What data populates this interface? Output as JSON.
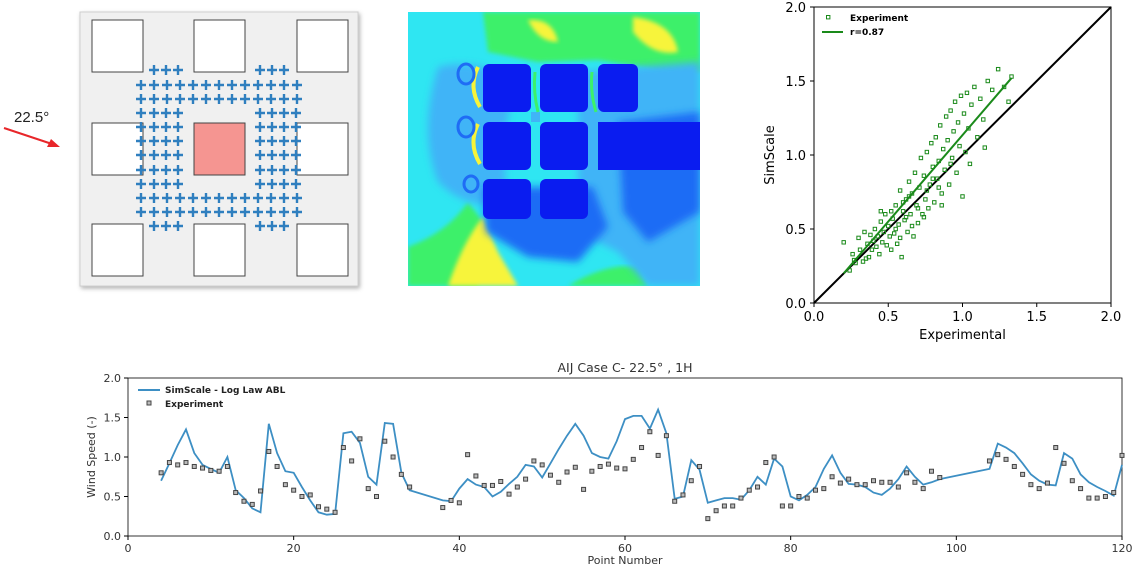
{
  "layout_panel": {
    "wind_angle_label": "22.5°",
    "arrow_color": "#e8262a",
    "target_building_color": "#f59591",
    "probe_color": "#2f7fbf"
  },
  "contour_panel": {
    "palette": [
      "#0a1cf0",
      "#1f6cf5",
      "#40b4f7",
      "#2af0f5",
      "#3cf06a",
      "#f7f43a"
    ]
  },
  "chart_data": [
    {
      "type": "scatter",
      "xlabel": "Experimental",
      "ylabel": "SimScale",
      "xlim": [
        0.0,
        2.0
      ],
      "ylim": [
        0.0,
        2.0
      ],
      "xticks": [
        "0.0",
        "0.5",
        "1.0",
        "1.5",
        "2.0"
      ],
      "yticks": [
        "0.0",
        "0.5",
        "1.0",
        "1.5",
        "2.0"
      ],
      "legend": [
        "Experiment",
        "r=0.87"
      ],
      "legend_position": "top-left",
      "grid": false,
      "colors": {
        "points": "#1a8a1a",
        "fit": "#1a8a1a",
        "identity": "#000000"
      },
      "identity_line": {
        "x": [
          0.0,
          2.0
        ],
        "y": [
          0.0,
          2.0
        ]
      },
      "fit_line": {
        "x": [
          0.2,
          1.33
        ],
        "y": [
          0.2,
          1.52
        ]
      },
      "points": [
        [
          0.2,
          0.41
        ],
        [
          0.24,
          0.22
        ],
        [
          0.26,
          0.33
        ],
        [
          0.28,
          0.27
        ],
        [
          0.3,
          0.44
        ],
        [
          0.31,
          0.36
        ],
        [
          0.33,
          0.28
        ],
        [
          0.34,
          0.48
        ],
        [
          0.36,
          0.4
        ],
        [
          0.37,
          0.31
        ],
        [
          0.38,
          0.46
        ],
        [
          0.39,
          0.36
        ],
        [
          0.4,
          0.42
        ],
        [
          0.41,
          0.5
        ],
        [
          0.42,
          0.38
        ],
        [
          0.43,
          0.45
        ],
        [
          0.44,
          0.33
        ],
        [
          0.45,
          0.55
        ],
        [
          0.46,
          0.41
        ],
        [
          0.47,
          0.48
        ],
        [
          0.48,
          0.6
        ],
        [
          0.49,
          0.39
        ],
        [
          0.5,
          0.52
        ],
        [
          0.51,
          0.45
        ],
        [
          0.52,
          0.62
        ],
        [
          0.53,
          0.57
        ],
        [
          0.54,
          0.47
        ],
        [
          0.55,
          0.66
        ],
        [
          0.56,
          0.4
        ],
        [
          0.57,
          0.53
        ],
        [
          0.58,
          0.76
        ],
        [
          0.59,
          0.31
        ],
        [
          0.6,
          0.62
        ],
        [
          0.61,
          0.56
        ],
        [
          0.62,
          0.7
        ],
        [
          0.63,
          0.48
        ],
        [
          0.64,
          0.82
        ],
        [
          0.65,
          0.6
        ],
        [
          0.66,
          0.74
        ],
        [
          0.67,
          0.45
        ],
        [
          0.68,
          0.88
        ],
        [
          0.69,
          0.66
        ],
        [
          0.7,
          0.54
        ],
        [
          0.71,
          0.78
        ],
        [
          0.72,
          0.98
        ],
        [
          0.73,
          0.6
        ],
        [
          0.74,
          0.86
        ],
        [
          0.75,
          0.7
        ],
        [
          0.76,
          1.02
        ],
        [
          0.77,
          0.64
        ],
        [
          0.78,
          0.8
        ],
        [
          0.79,
          1.08
        ],
        [
          0.8,
          0.92
        ],
        [
          0.81,
          0.68
        ],
        [
          0.82,
          1.12
        ],
        [
          0.83,
          0.84
        ],
        [
          0.84,
          0.96
        ],
        [
          0.85,
          1.2
        ],
        [
          0.86,
          0.74
        ],
        [
          0.87,
          1.04
        ],
        [
          0.88,
          0.9
        ],
        [
          0.89,
          1.26
        ],
        [
          0.9,
          1.1
        ],
        [
          0.91,
          0.8
        ],
        [
          0.92,
          1.3
        ],
        [
          0.93,
          0.98
        ],
        [
          0.94,
          1.16
        ],
        [
          0.95,
          1.36
        ],
        [
          0.96,
          0.88
        ],
        [
          0.97,
          1.22
        ],
        [
          0.98,
          1.06
        ],
        [
          0.99,
          1.4
        ],
        [
          1.0,
          0.72
        ],
        [
          1.01,
          1.28
        ],
        [
          1.02,
          1.02
        ],
        [
          1.03,
          1.42
        ],
        [
          1.04,
          1.18
        ],
        [
          1.05,
          0.94
        ],
        [
          1.06,
          1.34
        ],
        [
          1.08,
          1.46
        ],
        [
          1.1,
          1.12
        ],
        [
          1.12,
          1.38
        ],
        [
          1.14,
          1.24
        ],
        [
          1.17,
          1.5
        ],
        [
          1.2,
          1.44
        ],
        [
          1.24,
          1.58
        ],
        [
          1.28,
          1.46
        ],
        [
          1.31,
          1.36
        ],
        [
          1.33,
          1.53
        ],
        [
          0.35,
          0.3
        ],
        [
          0.45,
          0.62
        ],
        [
          0.52,
          0.36
        ],
        [
          0.58,
          0.44
        ],
        [
          0.62,
          0.58
        ],
        [
          0.66,
          0.52
        ],
        [
          0.7,
          0.64
        ],
        [
          0.74,
          0.58
        ],
        [
          0.8,
          0.84
        ],
        [
          0.86,
          0.66
        ],
        [
          0.92,
          0.94
        ],
        [
          1.15,
          1.05
        ],
        [
          0.27,
          0.29
        ],
        [
          0.55,
          0.5
        ],
        [
          0.6,
          0.68
        ],
        [
          0.64,
          0.72
        ],
        [
          0.76,
          0.76
        ],
        [
          0.84,
          0.78
        ]
      ]
    },
    {
      "type": "line",
      "title": "AIJ Case C- 22.5° , 1H",
      "xlabel": "Point Number",
      "ylabel": "Wind Speed (-)",
      "xlim": [
        0,
        120
      ],
      "ylim": [
        0.0,
        2.0
      ],
      "xticks": [
        "0",
        "20",
        "40",
        "60",
        "80",
        "100",
        "120"
      ],
      "yticks": [
        "0.0",
        "0.5",
        "1.0",
        "1.5",
        "2.0"
      ],
      "legend": [
        "SimScale - Log Law ABL",
        "Experiment"
      ],
      "legend_position": "top-left",
      "grid": false,
      "colors": {
        "line": "#3d8fc4",
        "markers": "#444444"
      },
      "series_line": {
        "name": "SimScale - Log Law ABL",
        "x": [
          4,
          5,
          6,
          7,
          8,
          9,
          10,
          11,
          12,
          13,
          14,
          15,
          16,
          17,
          18,
          19,
          20,
          21,
          22,
          23,
          24,
          25,
          26,
          27,
          28,
          29,
          30,
          31,
          32,
          33,
          34,
          38,
          39,
          40,
          41,
          42,
          43,
          44,
          45,
          46,
          47,
          48,
          49,
          50,
          51,
          52,
          53,
          54,
          55,
          56,
          57,
          58,
          59,
          60,
          61,
          62,
          63,
          64,
          65,
          66,
          67,
          68,
          69,
          70,
          71,
          72,
          73,
          74,
          75,
          76,
          77,
          78,
          79,
          80,
          81,
          82,
          83,
          84,
          85,
          86,
          87,
          88,
          89,
          90,
          91,
          92,
          93,
          94,
          95,
          96,
          97,
          98,
          104,
          105,
          106,
          107,
          108,
          109,
          110,
          111,
          112,
          113,
          114,
          115,
          116,
          117,
          118,
          119,
          120
        ],
        "y": [
          0.7,
          0.92,
          1.15,
          1.35,
          1.05,
          0.9,
          0.85,
          0.8,
          1.0,
          0.58,
          0.48,
          0.35,
          0.3,
          1.42,
          1.05,
          0.82,
          0.8,
          0.62,
          0.45,
          0.3,
          0.27,
          0.28,
          1.3,
          1.32,
          1.18,
          0.75,
          0.65,
          1.43,
          1.42,
          0.8,
          0.58,
          0.45,
          0.44,
          0.6,
          0.72,
          0.65,
          0.62,
          0.5,
          0.56,
          0.66,
          0.75,
          0.9,
          0.88,
          0.74,
          0.92,
          1.1,
          1.27,
          1.42,
          1.27,
          1.05,
          1.0,
          0.98,
          1.2,
          1.48,
          1.52,
          1.52,
          1.36,
          1.6,
          1.3,
          0.47,
          0.5,
          0.96,
          0.84,
          0.42,
          0.45,
          0.48,
          0.48,
          0.46,
          0.58,
          0.75,
          0.65,
          0.98,
          0.88,
          0.5,
          0.45,
          0.52,
          0.62,
          0.85,
          1.02,
          0.8,
          0.66,
          0.65,
          0.62,
          0.55,
          0.52,
          0.6,
          0.72,
          0.88,
          0.75,
          0.65,
          0.68,
          0.72,
          0.85,
          1.17,
          1.12,
          1.05,
          0.92,
          0.78,
          0.7,
          0.65,
          0.64,
          1.05,
          0.98,
          0.78,
          0.68,
          0.62,
          0.57,
          0.51,
          0.9
        ]
      },
      "series_points": {
        "name": "Experiment",
        "x": [
          4,
          5,
          6,
          7,
          8,
          9,
          10,
          11,
          12,
          13,
          14,
          15,
          16,
          17,
          18,
          19,
          20,
          21,
          22,
          23,
          24,
          25,
          26,
          27,
          28,
          29,
          30,
          31,
          32,
          33,
          34,
          38,
          39,
          40,
          41,
          42,
          43,
          44,
          45,
          46,
          47,
          48,
          49,
          50,
          51,
          52,
          53,
          54,
          55,
          56,
          57,
          58,
          59,
          60,
          61,
          62,
          63,
          64,
          65,
          66,
          67,
          68,
          69,
          70,
          71,
          72,
          73,
          74,
          75,
          76,
          77,
          78,
          79,
          80,
          81,
          82,
          83,
          84,
          85,
          86,
          87,
          88,
          89,
          90,
          91,
          92,
          93,
          94,
          95,
          96,
          97,
          98,
          104,
          105,
          106,
          107,
          108,
          109,
          110,
          111,
          112,
          113,
          114,
          115,
          116,
          117,
          118,
          119,
          120
        ],
        "y": [
          0.8,
          0.93,
          0.9,
          0.93,
          0.88,
          0.86,
          0.83,
          0.82,
          0.88,
          0.55,
          0.44,
          0.4,
          0.57,
          1.07,
          0.88,
          0.65,
          0.58,
          0.5,
          0.52,
          0.37,
          0.34,
          0.3,
          1.12,
          0.95,
          1.23,
          0.6,
          0.5,
          1.2,
          1.0,
          0.78,
          0.62,
          0.36,
          0.45,
          0.42,
          1.03,
          0.76,
          0.64,
          0.64,
          0.69,
          0.53,
          0.62,
          0.72,
          0.95,
          0.9,
          0.77,
          0.68,
          0.81,
          0.87,
          0.59,
          0.82,
          0.88,
          0.91,
          0.86,
          0.85,
          0.97,
          1.12,
          1.32,
          1.02,
          1.27,
          0.44,
          0.52,
          0.7,
          0.88,
          0.22,
          0.32,
          0.38,
          0.38,
          0.48,
          0.58,
          0.62,
          0.93,
          1.0,
          0.38,
          0.38,
          0.5,
          0.48,
          0.58,
          0.6,
          0.75,
          0.67,
          0.72,
          0.65,
          0.65,
          0.7,
          0.68,
          0.68,
          0.62,
          0.8,
          0.68,
          0.6,
          0.82,
          0.74,
          0.95,
          1.03,
          0.97,
          0.88,
          0.78,
          0.65,
          0.6,
          0.67,
          1.12,
          0.92,
          0.7,
          0.6,
          0.48,
          0.48,
          0.5,
          0.55,
          1.02
        ]
      }
    }
  ]
}
